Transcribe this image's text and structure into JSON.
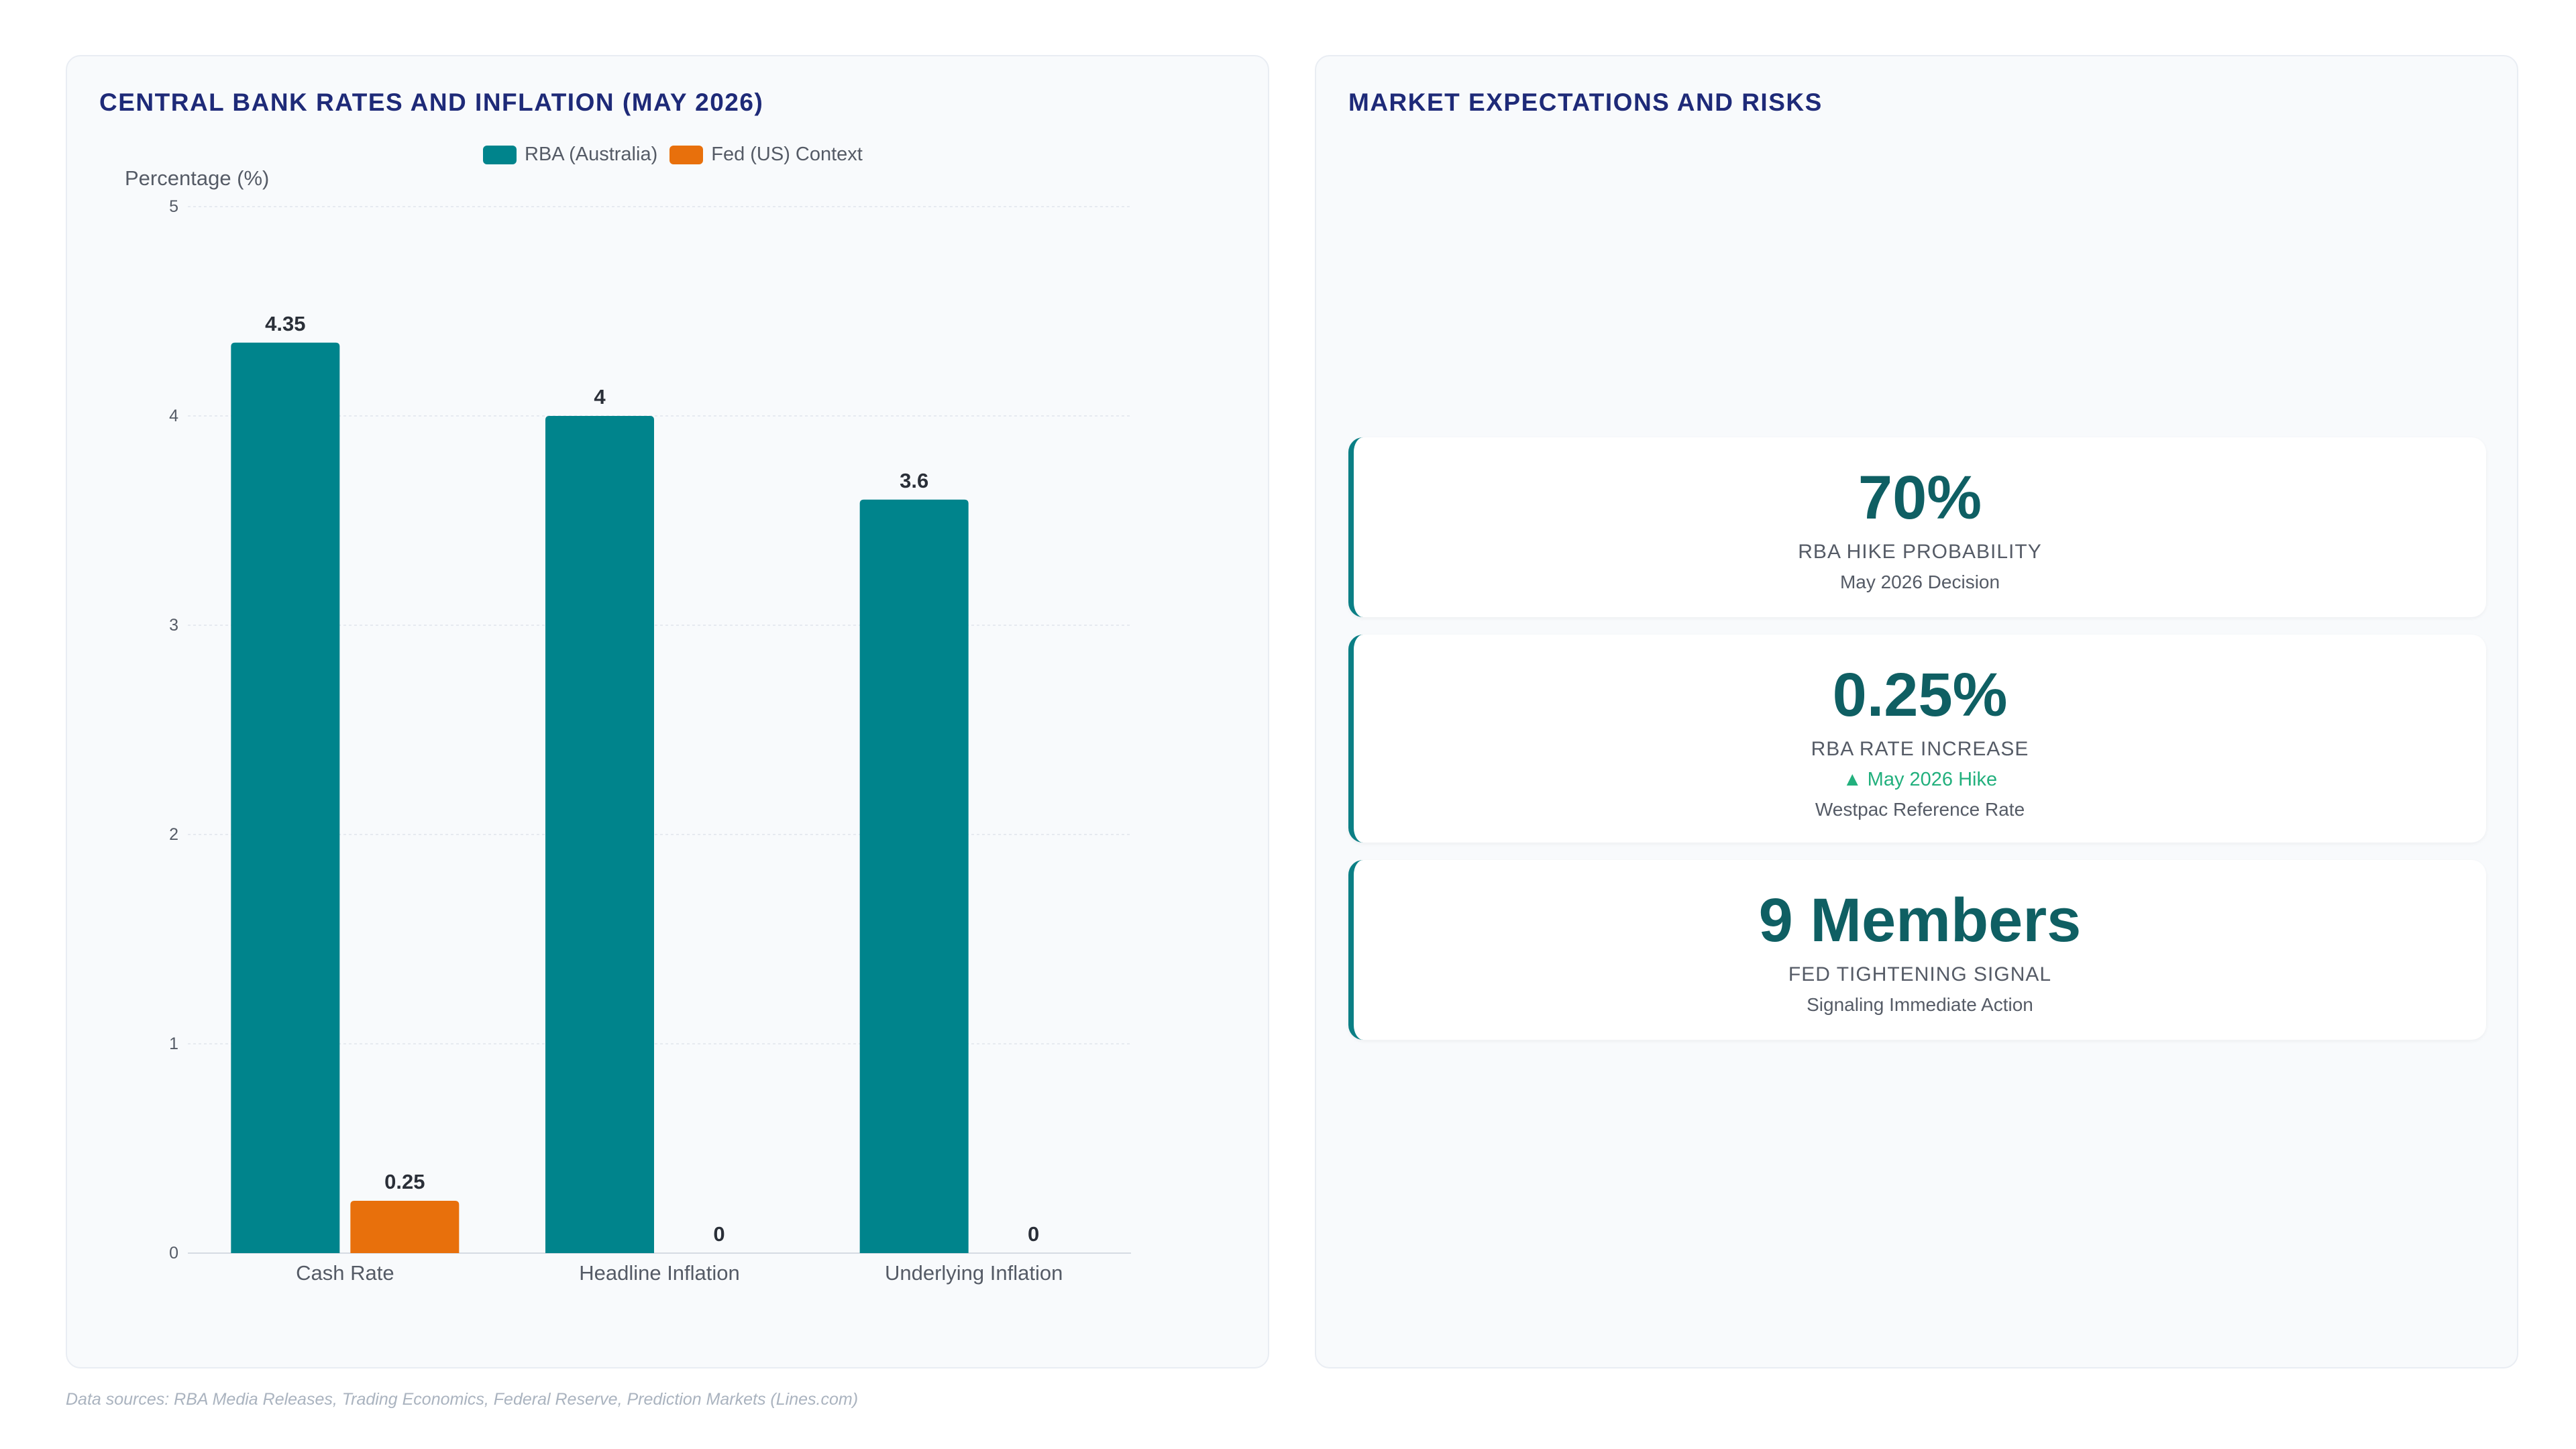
{
  "chart_panel": {
    "title": "CENTRAL BANK RATES AND INFLATION (MAY 2026)"
  },
  "chart_data": {
    "type": "bar",
    "title": "CENTRAL BANK RATES AND INFLATION (MAY 2026)",
    "categories": [
      "Cash Rate",
      "Headline Inflation",
      "Underlying Inflation"
    ],
    "series": [
      {
        "name": "RBA (Australia)",
        "values": [
          4.35,
          4,
          3.6
        ],
        "color": "#00848c"
      },
      {
        "name": "Fed (US) Context",
        "values": [
          0.25,
          0,
          0
        ],
        "color": "#e8700c"
      }
    ],
    "ylabel": "Percentage (%)",
    "xlabel": "",
    "ylim": [
      0,
      5
    ],
    "yticks": [
      0,
      1,
      2,
      3,
      4,
      5
    ],
    "grid": true,
    "legend_position": "top-center"
  },
  "risk_panel": {
    "title": "MARKET EXPECTATIONS AND RISKS",
    "cards": [
      {
        "value": "70%",
        "label": "RBA HIKE PROBABILITY",
        "trend": "",
        "sub": "May 2026 Decision"
      },
      {
        "value": "0.25%",
        "label": "RBA RATE INCREASE",
        "trend": "▲ May 2026 Hike",
        "sub": "Westpac Reference Rate"
      },
      {
        "value": "9 Members",
        "label": "FED TIGHTENING SIGNAL",
        "trend": "",
        "sub": "Signaling Immediate Action"
      }
    ]
  },
  "colors": {
    "accent": "#0b7f85",
    "kpi_value": "#0f5f63",
    "trend_up": "#22b07d",
    "title": "#1e2a78"
  },
  "footer": {
    "sources": "Data sources: RBA Media Releases, Trading Economics, Federal Reserve, Prediction Markets (Lines.com)"
  }
}
